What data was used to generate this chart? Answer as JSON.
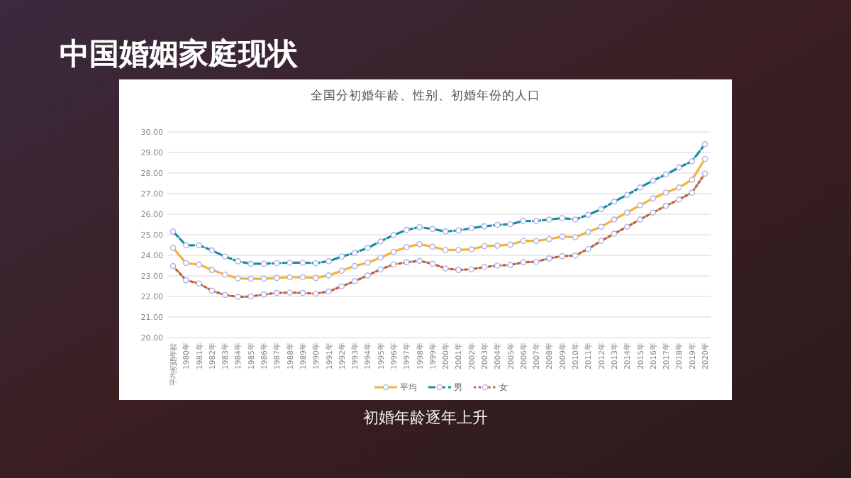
{
  "chart_data": {
    "type": "line",
    "title": "中国婚姻家庭现状",
    "subtitle": "全国分初婚年龄、性别、初婚年份的人口",
    "annotations": [
      "初婚年龄逐年上升"
    ],
    "categories": [
      "平均初婚年龄",
      "1980年",
      "1981年",
      "1982年",
      "1983年",
      "1984年",
      "1985年",
      "1986年",
      "1987年",
      "1988年",
      "1989年",
      "1990年",
      "1991年",
      "1992年",
      "1993年",
      "1994年",
      "1995年",
      "1996年",
      "1997年",
      "1998年",
      "1999年",
      "2000年",
      "2001年",
      "2002年",
      "2003年",
      "2004年",
      "2005年",
      "2006年",
      "2007年",
      "2008年",
      "2009年",
      "2010年",
      "2011年",
      "2012年",
      "2013年",
      "2014年",
      "2015年",
      "2016年",
      "2017年",
      "2018年",
      "2019年",
      "2020年"
    ],
    "series": [
      {
        "name": "平均",
        "color": "#f5b335",
        "line_style": "solid",
        "values": [
          24.36,
          23.62,
          23.55,
          23.29,
          23.06,
          22.88,
          22.86,
          22.86,
          22.9,
          22.93,
          22.93,
          22.9,
          23.02,
          23.25,
          23.48,
          23.64,
          23.89,
          24.17,
          24.4,
          24.54,
          24.42,
          24.26,
          24.26,
          24.29,
          24.45,
          24.47,
          24.52,
          24.7,
          24.7,
          24.79,
          24.91,
          24.88,
          25.14,
          25.39,
          25.74,
          26.08,
          26.43,
          26.77,
          27.05,
          27.3,
          27.67,
          28.69
        ]
      },
      {
        "name": "男",
        "color": "#1a8fa0",
        "line_style": "dashed",
        "values": [
          25.16,
          24.49,
          24.49,
          24.24,
          23.94,
          23.71,
          23.59,
          23.59,
          23.62,
          23.64,
          23.64,
          23.62,
          23.71,
          23.94,
          24.12,
          24.36,
          24.68,
          24.98,
          25.23,
          25.37,
          25.28,
          25.16,
          25.21,
          25.32,
          25.41,
          25.48,
          25.51,
          25.67,
          25.67,
          25.74,
          25.81,
          25.74,
          25.97,
          26.24,
          26.61,
          26.94,
          27.3,
          27.63,
          27.93,
          28.27,
          28.57,
          29.4
        ]
      },
      {
        "name": "女",
        "color": "#c0603a",
        "line_style": "dotted",
        "values": [
          23.48,
          22.79,
          22.63,
          22.28,
          22.07,
          21.98,
          22.0,
          22.1,
          22.17,
          22.19,
          22.17,
          22.14,
          22.24,
          22.49,
          22.74,
          23.02,
          23.32,
          23.55,
          23.66,
          23.73,
          23.59,
          23.36,
          23.29,
          23.32,
          23.43,
          23.5,
          23.53,
          23.66,
          23.69,
          23.85,
          23.96,
          23.99,
          24.31,
          24.7,
          25.05,
          25.39,
          25.74,
          26.08,
          26.41,
          26.71,
          27.05,
          27.97
        ]
      }
    ],
    "ylim": [
      20,
      30
    ],
    "yticks": [
      {
        "value": 20,
        "label": "20.00"
      },
      {
        "value": 21,
        "label": "21.00"
      },
      {
        "value": 22,
        "label": "22.00"
      },
      {
        "value": 23,
        "label": "23.00"
      },
      {
        "value": 24,
        "label": "24.00"
      },
      {
        "value": 25,
        "label": "25.00"
      },
      {
        "value": 26,
        "label": "26.00"
      },
      {
        "value": 27,
        "label": "27.00"
      },
      {
        "value": 28,
        "label": "28.00"
      },
      {
        "value": 29,
        "label": "29.00"
      },
      {
        "value": 30,
        "label": "30.00"
      }
    ],
    "grid": "y",
    "legend": "bottom",
    "marker": "circle"
  }
}
